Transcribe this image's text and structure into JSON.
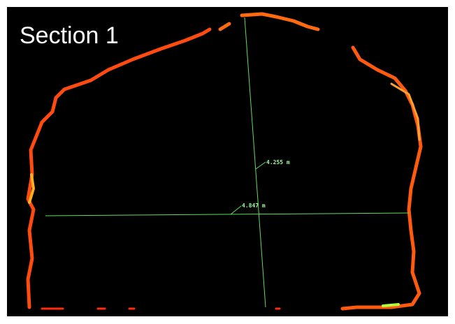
{
  "header": {
    "title": "Section 1"
  },
  "measurements": [
    {
      "label": "4.255 m"
    },
    {
      "label": "4.847 m"
    }
  ]
}
